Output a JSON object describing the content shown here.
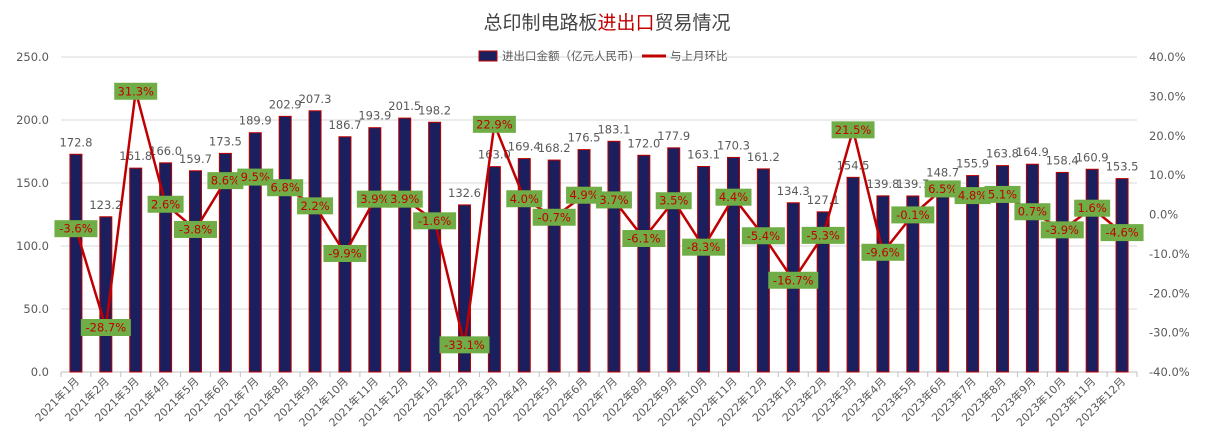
{
  "chart_data": {
    "type": "bar",
    "title_prefix": "总印制电路板",
    "title_highlight": "进出口",
    "title_suffix": "贸易情况",
    "categories": [
      "2021年1月",
      "2021年2月",
      "2021年3月",
      "2021年4月",
      "2021年5月",
      "2021年6月",
      "2021年7月",
      "2021年8月",
      "2021年9月",
      "2021年10月",
      "2021年11月",
      "2021年12月",
      "2022年1月",
      "2022年2月",
      "2022年3月",
      "2022年4月",
      "2022年5月",
      "2022年6月",
      "2022年7月",
      "2022年8月",
      "2022年9月",
      "2022年10月",
      "2022年11月",
      "2022年12月",
      "2023年1月",
      "2023年2月",
      "2023年3月",
      "2023年4月",
      "2023年5月",
      "2023年6月",
      "2023年7月",
      "2023年8月",
      "2023年9月",
      "2023年10月",
      "2023年11月",
      "2023年12月"
    ],
    "series": [
      {
        "name": "进出口金额（亿元人民币)",
        "type": "bar",
        "axis": "left",
        "values": [
          172.8,
          123.2,
          161.8,
          166.0,
          159.7,
          173.5,
          189.9,
          202.9,
          207.3,
          186.7,
          193.9,
          201.5,
          198.2,
          132.6,
          163.0,
          169.4,
          168.2,
          176.5,
          183.1,
          172.0,
          177.9,
          163.1,
          170.3,
          161.2,
          134.3,
          127.1,
          154.5,
          139.8,
          139.7,
          148.7,
          155.9,
          163.8,
          164.9,
          158.4,
          160.9,
          153.5
        ],
        "value_labels": [
          "172.8",
          "123.2",
          "161.8",
          "166.0",
          "159.7",
          "173.5",
          "189.9",
          "202.9",
          "207.3",
          "186.7",
          "193.9",
          "201.5",
          "198.2",
          "132.6",
          "163.0",
          "169.4",
          "168.2",
          "176.5",
          "183.1",
          "172.0",
          "177.9",
          "163.1",
          "170.3",
          "161.2",
          "134.3",
          "127.1",
          "154.5",
          "139.8",
          "139.7",
          "148.7",
          "155.9",
          "163.8",
          "164.9",
          "158.4",
          "160.9",
          "153.5"
        ]
      },
      {
        "name": "与上月环比",
        "type": "line",
        "axis": "right",
        "values": [
          -3.6,
          -28.7,
          31.3,
          2.6,
          -3.8,
          8.6,
          9.5,
          6.8,
          2.2,
          -9.9,
          3.9,
          3.9,
          -1.6,
          -33.1,
          22.9,
          4.0,
          -0.7,
          4.9,
          3.7,
          -6.1,
          3.5,
          -8.3,
          4.4,
          -5.4,
          -16.7,
          -5.3,
          21.5,
          -9.6,
          -0.1,
          6.5,
          4.8,
          5.1,
          0.7,
          -3.9,
          1.6,
          -4.6
        ],
        "value_labels": [
          "-3.6%",
          "-28.7%",
          "31.3%",
          "2.6%",
          "-3.8%",
          "8.6%",
          "9.5%",
          "6.8%",
          "2.2%",
          "-9.9%",
          "3.9%",
          "3.9%",
          "-1.6%",
          "-33.1%",
          "22.9%",
          "4.0%",
          "-0.7%",
          "4.9%",
          "3.7%",
          "-6.1%",
          "3.5%",
          "-8.3%",
          "4.4%",
          "-5.4%",
          "-16.7%",
          "-5.3%",
          "21.5%",
          "-9.6%",
          "-0.1%",
          "6.5%",
          "4.8%",
          "5.1%",
          "0.7%",
          "-3.9%",
          "1.6%",
          "-4.6%"
        ]
      }
    ],
    "y_left": {
      "min": 0,
      "max": 250,
      "ticks": [
        "0.0",
        "50.0",
        "100.0",
        "150.0",
        "200.0",
        "250.0"
      ]
    },
    "y_right": {
      "min": -40,
      "max": 40,
      "ticks": [
        "-40.0%",
        "-30.0%",
        "-20.0%",
        "-10.0%",
        "0.0%",
        "10.0%",
        "20.0%",
        "30.0%",
        "40.0%"
      ]
    },
    "grid": true,
    "legend_position": "top-center",
    "colors": {
      "bar_fill": "#1b1f5e",
      "bar_stroke": "#c00000",
      "line": "#c00000",
      "line_label_bg": "#70ad47",
      "line_label_text": "#c00000",
      "bar_label_text": "#595959",
      "axis_text": "#595959",
      "grid": "#d9d9d9",
      "title_highlight": "#c00000"
    }
  }
}
